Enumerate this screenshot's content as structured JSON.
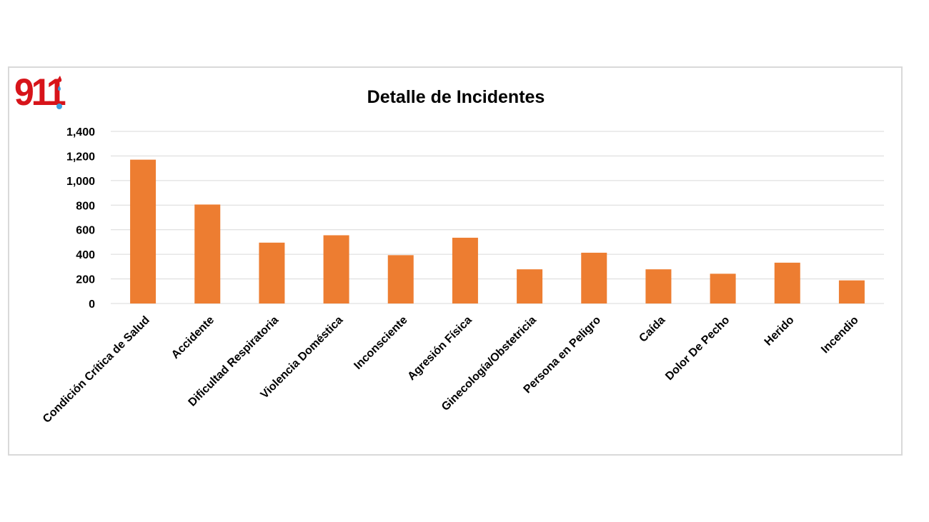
{
  "logo": {
    "text": "911",
    "icon": "911-emergency-logo",
    "colors": {
      "primary": "#d7141a",
      "secondary": "#3aa0e0"
    }
  },
  "chart_data": {
    "type": "bar",
    "title": "Detalle de Incidentes",
    "xlabel": "",
    "ylabel": "",
    "categories": [
      "Condición Crítica de Salud",
      "Accidente",
      "Dificultad Respiratoria",
      "Violencia Doméstica",
      "Inconsciente",
      "Agresión Física",
      "Ginecología/Obstetricia",
      "Persona en Peligro",
      "Caída",
      "Dolor De Pecho",
      "Herido",
      "Incendio"
    ],
    "values": [
      1170,
      805,
      495,
      555,
      393,
      535,
      278,
      413,
      278,
      242,
      332,
      188
    ],
    "ylim": [
      0,
      1400
    ],
    "yticks": [
      0,
      200,
      400,
      600,
      800,
      1000,
      1200,
      1400
    ],
    "ytick_labels": [
      "0",
      "200",
      "400",
      "600",
      "800",
      "1,000",
      "1,200",
      "1,400"
    ],
    "grid": true,
    "legend": "none",
    "colors": {
      "bar": "#ed7d31",
      "grid": "#d9d9d9"
    }
  }
}
